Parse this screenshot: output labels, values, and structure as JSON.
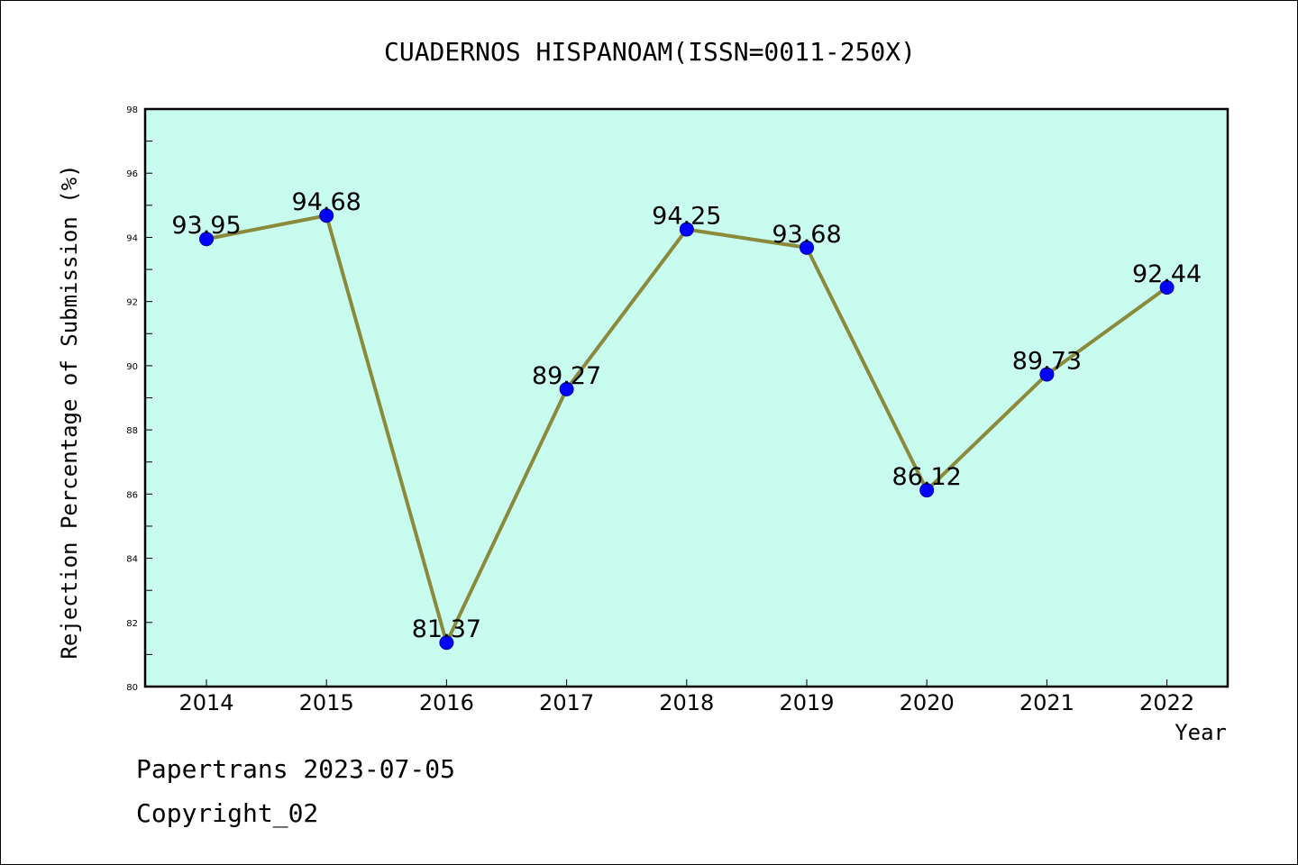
{
  "chart_data": {
    "type": "line",
    "title": "CUADERNOS HISPANOAM(ISSN=0011-250X)",
    "xlabel": "Year",
    "ylabel": "Rejection Percentage of Submission (%)",
    "ylim": [
      80,
      98
    ],
    "yticks": [
      80,
      82,
      84,
      86,
      88,
      90,
      92,
      94,
      96,
      98
    ],
    "categories": [
      "2014",
      "2015",
      "2016",
      "2017",
      "2018",
      "2019",
      "2020",
      "2021",
      "2022"
    ],
    "series": [
      {
        "values": [
          93.95,
          94.68,
          81.37,
          89.27,
          94.25,
          93.68,
          86.12,
          89.73,
          92.44
        ],
        "labels": [
          "93.95",
          "94.68",
          "81.37",
          "89.27",
          "94.25",
          "93.68",
          "86.12",
          "89.73",
          "92.44"
        ]
      }
    ],
    "grid": false,
    "colors": {
      "plot_background": "#c8fcee",
      "line": "#8b8a3c",
      "marker": "#0000ff"
    }
  },
  "footer": {
    "source": "Papertrans 2023-07-05",
    "copyright": "Copyright_02"
  }
}
